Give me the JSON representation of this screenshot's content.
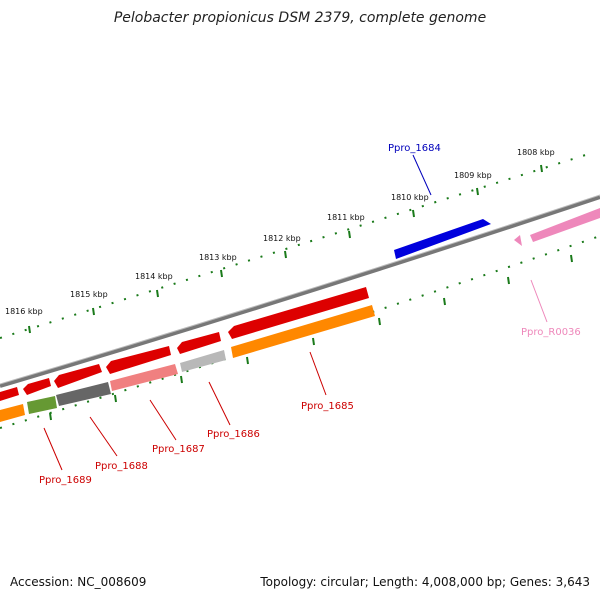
{
  "title": "Pelobacter propionicus DSM 2379, complete genome",
  "footer": {
    "accession": "Accession: NC_008609",
    "topology": "Topology: circular; Length: 4,008,000 bp; Genes: 3,643"
  },
  "colors": {
    "backbone": "#7f7f7f",
    "ticks": "#1a7a1a",
    "red": "#e00000",
    "orange": "#ff8800",
    "blue": "#0000dd",
    "pink": "#ee88bb",
    "gray": "#b0b0b0",
    "darkgray": "#666666",
    "olive": "#669933",
    "salmon": "#f08080",
    "label_red": "#cc0000",
    "label_blue": "#0000bb",
    "label_pink": "#ee88bb"
  },
  "scale_labels": [
    "1808 kbp",
    "1809 kbp",
    "1810 kbp",
    "1811 kbp",
    "1812 kbp",
    "1813 kbp",
    "1814 kbp",
    "1815 kbp",
    "1816 kbp"
  ],
  "gene_labels": [
    {
      "name": "Ppro_1684",
      "color": "blue"
    },
    {
      "name": "Ppro_R0036",
      "color": "pink"
    },
    {
      "name": "Ppro_1685",
      "color": "red"
    },
    {
      "name": "Ppro_1686",
      "color": "red"
    },
    {
      "name": "Ppro_1687",
      "color": "red"
    },
    {
      "name": "Ppro_1688",
      "color": "red"
    },
    {
      "name": "Ppro_1689",
      "color": "red"
    }
  ]
}
